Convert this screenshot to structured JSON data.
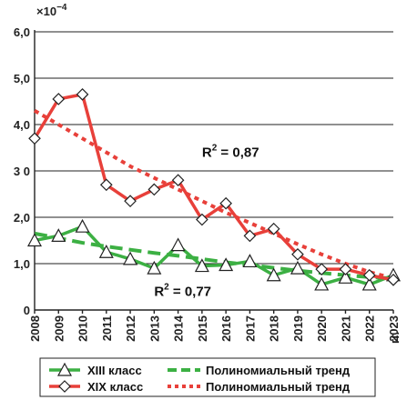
{
  "chart_data": {
    "type": "line",
    "y_multiplier": "×10",
    "y_multiplier_exp": "−4",
    "x_unit": "гг.",
    "x": [
      "2008",
      "2009",
      "2010",
      "2011",
      "2012",
      "2013",
      "2014",
      "2015",
      "2016",
      "2017",
      "2018",
      "2019",
      "2020",
      "2021",
      "2022",
      "2023"
    ],
    "y_ticks": [
      "0",
      "1,0",
      "2,0",
      "3 0",
      "4,0",
      "5,0",
      "6,0"
    ],
    "ylim": [
      0,
      6
    ],
    "grid": "horizontal",
    "legend_position": "bottom",
    "series": [
      {
        "name": "XIII класс",
        "kind": "data",
        "marker": "triangle",
        "color": "#3cb043",
        "values": [
          1.5,
          1.6,
          1.8,
          1.25,
          1.1,
          0.9,
          1.4,
          0.95,
          0.97,
          1.05,
          0.75,
          0.9,
          0.55,
          0.7,
          0.55,
          0.75
        ]
      },
      {
        "name": "Полиномиальный тренд",
        "kind": "trend",
        "style": "dashed",
        "color": "#3cb043",
        "values": [
          1.65,
          1.55,
          1.45,
          1.37,
          1.3,
          1.23,
          1.17,
          1.1,
          1.03,
          0.97,
          0.91,
          0.85,
          0.8,
          0.75,
          0.71,
          0.68
        ]
      },
      {
        "name": "XIX класс",
        "kind": "data",
        "marker": "diamond",
        "color": "#e8403a",
        "values": [
          3.7,
          4.55,
          4.65,
          2.7,
          2.35,
          2.6,
          2.8,
          1.95,
          2.3,
          1.6,
          1.75,
          1.2,
          0.88,
          0.88,
          0.75,
          0.65
        ]
      },
      {
        "name": "Полиномиальный тренд",
        "kind": "trend",
        "style": "dotted",
        "color": "#e8403a",
        "values": [
          4.3,
          4.0,
          3.7,
          3.4,
          3.1,
          2.85,
          2.6,
          2.35,
          2.1,
          1.88,
          1.65,
          1.42,
          1.2,
          1.0,
          0.82,
          0.68
        ]
      }
    ],
    "annotations": [
      {
        "id": "r2-xix",
        "base": "R",
        "sup": "2",
        "text": " = 0,87",
        "x": "2015",
        "y": 3.3
      },
      {
        "id": "r2-xiii",
        "base": "R",
        "sup": "2",
        "text": " = 0,77",
        "x": "2013",
        "y": 0.3
      }
    ]
  }
}
